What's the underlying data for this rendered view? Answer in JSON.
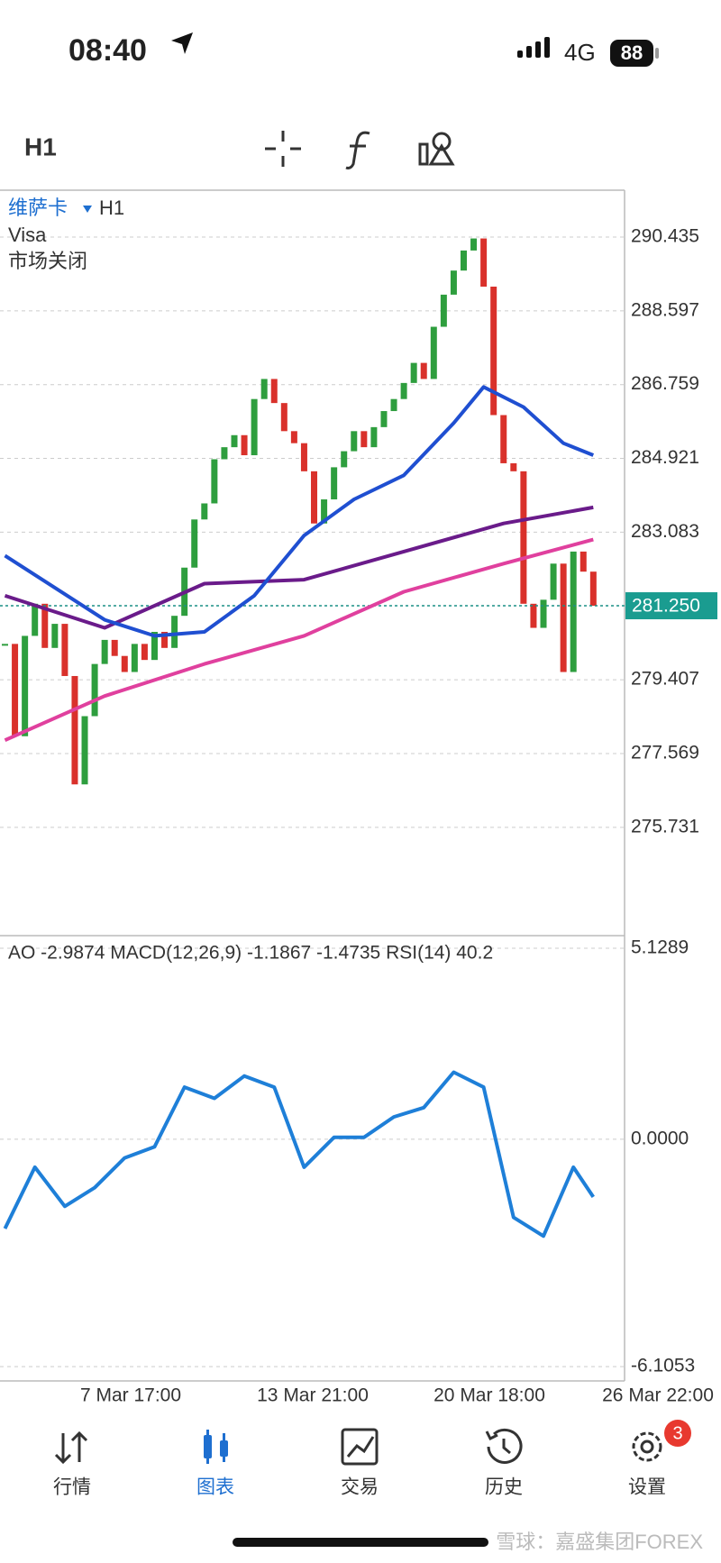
{
  "status_bar": {
    "time": "08:40",
    "network": "4G",
    "battery": "88"
  },
  "toolbar": {
    "timeframe": "H1"
  },
  "chart_data": [
    {
      "type": "candlestick",
      "symbol": "维萨卡",
      "timeframe": "H1",
      "name": "Visa",
      "status": "市场关闭",
      "closes": [
        280.3,
        278.0,
        280.5,
        281.3,
        280.2,
        280.8,
        279.5,
        276.8,
        278.5,
        279.8,
        280.4,
        280.0,
        279.6,
        280.3,
        279.9,
        280.6,
        280.2,
        281.0,
        282.2,
        283.4,
        283.8,
        284.9,
        285.2,
        285.5,
        285.0,
        286.4,
        286.9,
        286.3,
        285.6,
        285.3,
        284.6,
        283.3,
        283.9,
        284.7,
        285.1,
        285.6,
        285.2,
        285.7,
        286.1,
        286.4,
        286.8,
        287.3,
        286.9,
        288.2,
        289.0,
        289.6,
        290.1,
        290.4,
        289.2,
        286.0,
        284.8,
        284.6,
        281.3,
        280.7,
        281.4,
        282.3,
        279.6,
        282.6,
        282.1,
        281.25
      ],
      "series": [
        {
          "color": "#e0409e",
          "x": [
            0,
            10,
            20,
            30,
            40,
            50,
            59
          ],
          "values": [
            277.9,
            279.0,
            279.8,
            280.5,
            281.6,
            282.3,
            282.9
          ]
        },
        {
          "color": "#6a1b8a",
          "x": [
            0,
            10,
            20,
            30,
            40,
            50,
            59
          ],
          "values": [
            281.5,
            280.7,
            281.8,
            281.9,
            282.6,
            283.3,
            283.7
          ]
        },
        {
          "color": "#1f4fd1",
          "x": [
            0,
            10,
            15,
            20,
            25,
            30,
            35,
            40,
            45,
            48,
            52,
            56,
            59
          ],
          "values": [
            282.5,
            280.9,
            280.5,
            280.6,
            281.5,
            283.0,
            283.9,
            284.5,
            285.8,
            286.7,
            286.2,
            285.3,
            285.0
          ]
        }
      ],
      "ylim": [
        273.1,
        291.58
      ],
      "yticks": [
        290.435,
        288.597,
        286.759,
        284.921,
        283.083,
        279.407,
        277.569,
        275.731
      ],
      "last_price": {
        "value": 281.25,
        "label": "281.250"
      },
      "x_labels": [
        "7 Mar 17:00",
        "13 Mar 21:00",
        "20 Mar 18:00",
        "26 Mar 22:00"
      ]
    },
    {
      "type": "line",
      "label": "AO -2.9874 MACD(12,26,9) -1.1867 -1.4735 RSI(14) 40.2",
      "ylim": [
        -6.49,
        5.42
      ],
      "yticks": [
        5.1289,
        {
          "value": 0,
          "label": "0.0000"
        },
        -6.1053
      ],
      "series": [
        {
          "color": "#1e7fd8",
          "x": [
            0,
            3,
            6,
            9,
            12,
            15,
            18,
            21,
            24,
            27,
            30,
            33,
            36,
            39,
            42,
            45,
            48,
            51,
            54,
            57,
            59
          ],
          "values": [
            -2.4,
            -0.75,
            -1.8,
            -1.3,
            -0.5,
            -0.2,
            1.4,
            1.1,
            1.7,
            1.4,
            -0.75,
            0.05,
            0.05,
            0.6,
            0.85,
            1.8,
            1.4,
            -2.1,
            -2.6,
            -0.75,
            -1.55
          ]
        }
      ]
    }
  ],
  "nav": {
    "items": [
      "行情",
      "图表",
      "交易",
      "历史",
      "设置"
    ],
    "badge": "3"
  },
  "watermark": "雪球：嘉盛集团FOREX"
}
